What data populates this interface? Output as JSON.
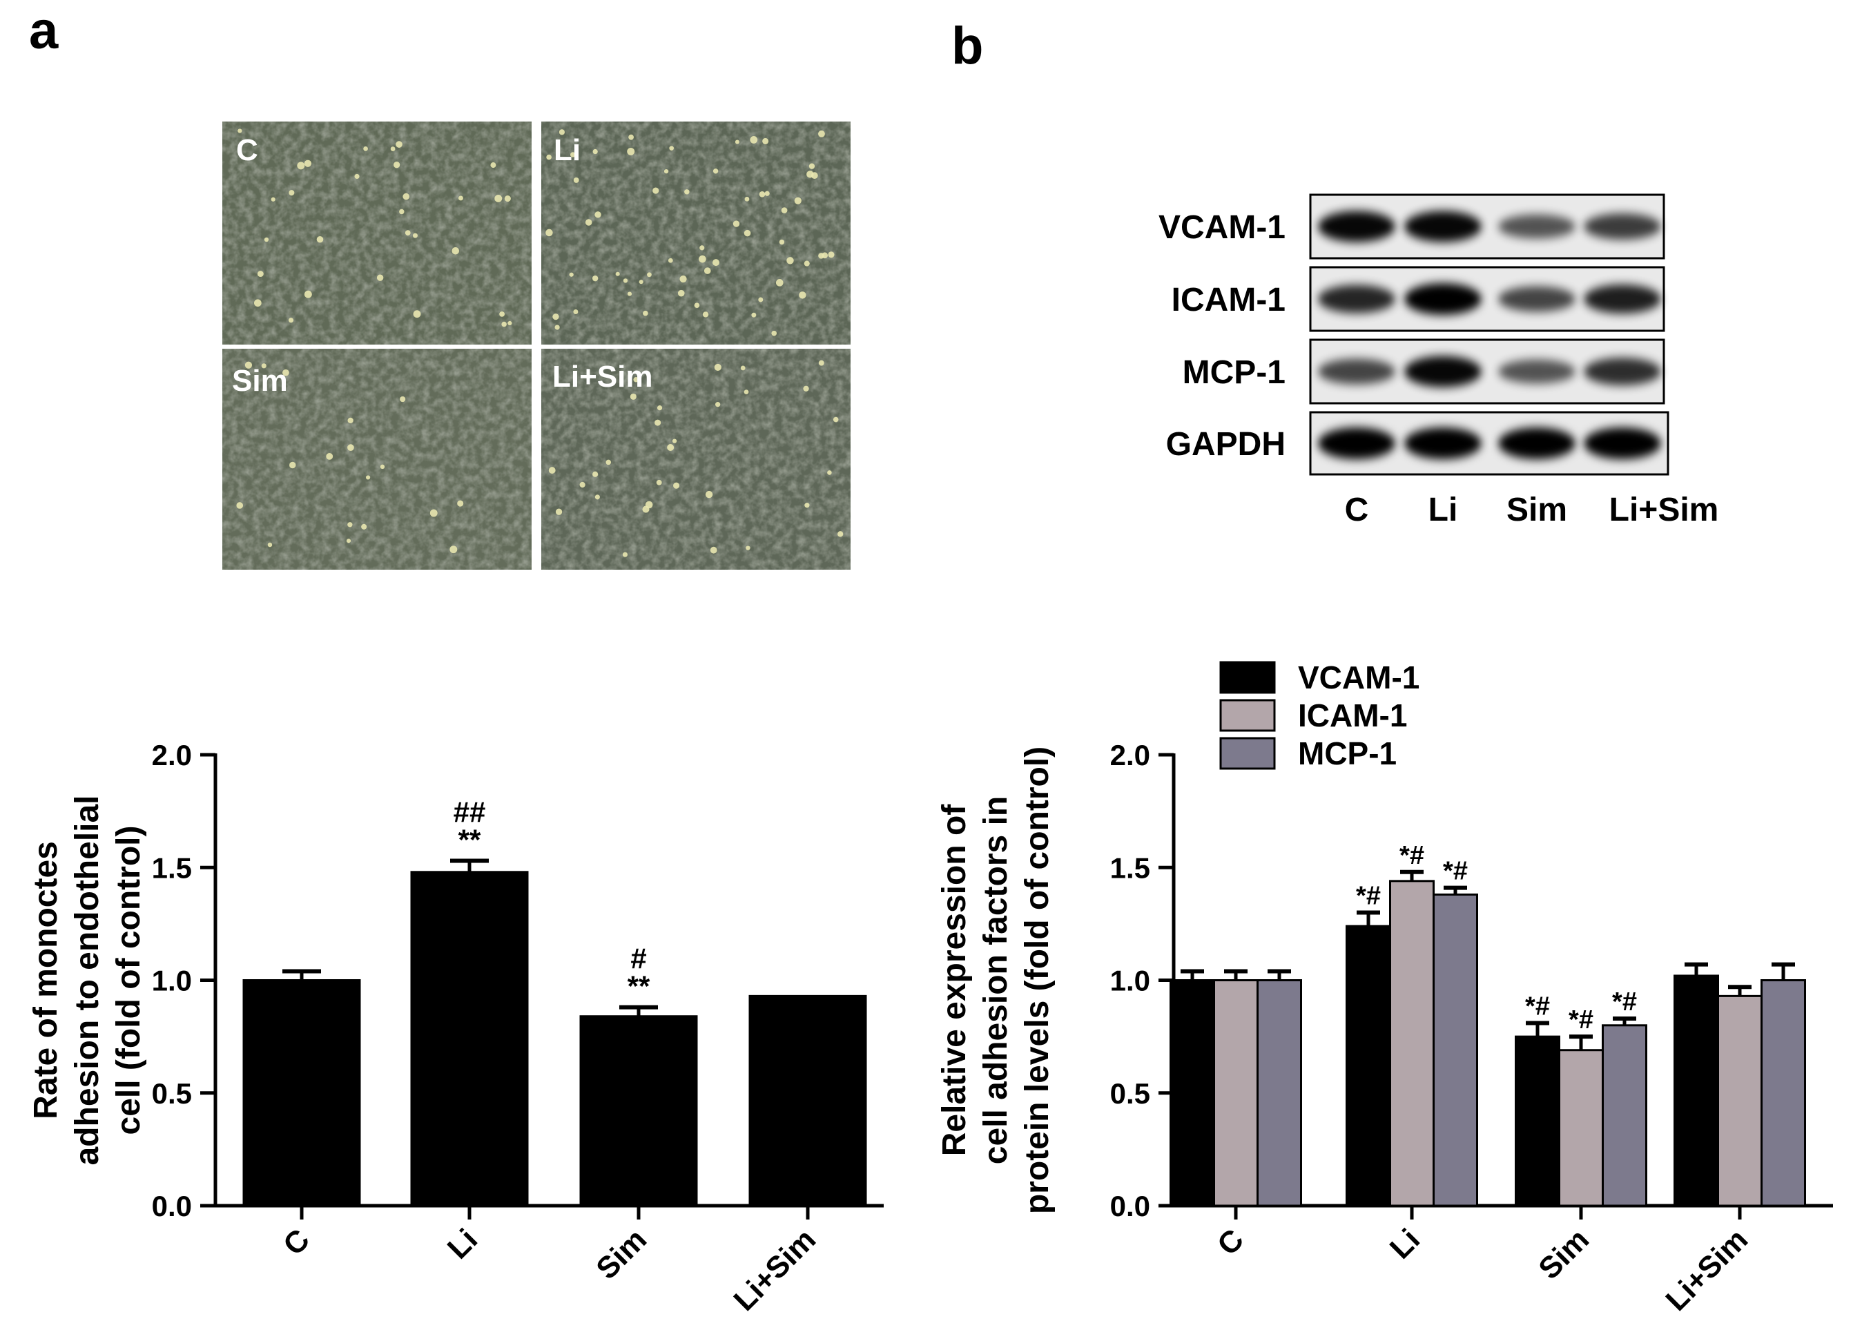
{
  "panels": {
    "a": {
      "letter": "a",
      "micro_labels": [
        "C",
        "Li",
        "Sim",
        "Li+Sim"
      ]
    },
    "b": {
      "letter": "b",
      "blot_rows": [
        "VCAM-1",
        "ICAM-1",
        "MCP-1",
        "GAPDH"
      ],
      "blot_lanes": [
        "C",
        "Li",
        "Sim",
        "Li+Sim"
      ]
    }
  },
  "colors": {
    "bar_black": "#000000",
    "bar_icam": "#b3a6aa",
    "bar_mcp": "#7d7a8d"
  },
  "chart_data": [
    {
      "type": "bar",
      "ylabel": [
        "Rate of monoctes",
        "adhesion to endothelial",
        "cell (fold of control)"
      ],
      "ylim": [
        0,
        2.0
      ],
      "yticks": [
        0.0,
        0.5,
        1.0,
        1.5,
        2.0
      ],
      "ytick_labels": [
        "0.0",
        "0.5",
        "1.0",
        "1.5",
        "2.0"
      ],
      "categories": [
        "C",
        "Li",
        "Sim",
        "Li+Sim"
      ],
      "values": [
        1.0,
        1.48,
        0.84,
        0.93
      ],
      "errors": [
        0.04,
        0.05,
        0.04,
        0.0
      ],
      "annotations": [
        {
          "category": 1,
          "lines": [
            "##",
            "**"
          ]
        },
        {
          "category": 2,
          "lines": [
            "#",
            "**"
          ]
        }
      ]
    },
    {
      "type": "bar",
      "ylabel": [
        "Relative expression of",
        "cell adhesion factors in",
        "protein levels (fold of control)"
      ],
      "ylim": [
        0,
        2.0
      ],
      "yticks": [
        0.0,
        0.5,
        1.0,
        1.5,
        2.0
      ],
      "ytick_labels": [
        "0.0",
        "0.5",
        "1.0",
        "1.5",
        "2.0"
      ],
      "categories": [
        "C",
        "Li",
        "Sim",
        "Li+Sim"
      ],
      "legend_position": "top",
      "series": [
        {
          "name": "VCAM-1",
          "values": [
            1.0,
            1.24,
            0.75,
            1.02
          ],
          "errors": [
            0.04,
            0.06,
            0.06,
            0.05
          ],
          "annotations": [
            "",
            "*#",
            "*#",
            ""
          ]
        },
        {
          "name": "ICAM-1",
          "values": [
            1.0,
            1.44,
            0.69,
            0.93
          ],
          "errors": [
            0.04,
            0.04,
            0.06,
            0.04
          ],
          "annotations": [
            "",
            "*#",
            "*#",
            ""
          ]
        },
        {
          "name": "MCP-1",
          "values": [
            1.0,
            1.38,
            0.8,
            1.0
          ],
          "errors": [
            0.04,
            0.03,
            0.03,
            0.07
          ],
          "annotations": [
            "",
            "*#",
            "*#",
            ""
          ]
        }
      ]
    }
  ]
}
